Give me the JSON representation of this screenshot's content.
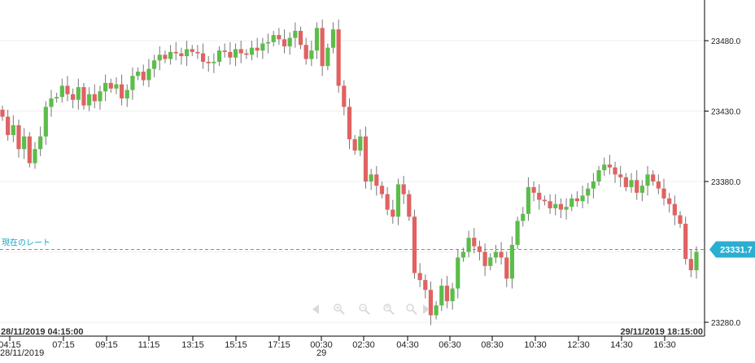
{
  "chart_data": {
    "type": "candlestick",
    "colors": {
      "up": "#5bbd4a",
      "down": "#e06262",
      "current_line": "#2aaed1",
      "grid": "#efefef",
      "axis": "#000000"
    },
    "y_axis": {
      "position": "right",
      "ticks": [
        "23480.0",
        "23430.0",
        "23380.0",
        "23280.0"
      ]
    },
    "x_axis": {
      "ticks": [
        "04:15",
        "07:15",
        "09:15",
        "11:15",
        "13:15",
        "15:15",
        "17:15",
        "00:30",
        "02:30",
        "04:30",
        "06:30",
        "08:30",
        "10:30",
        "12:30",
        "14:30",
        "16:30"
      ],
      "date_labels": [
        {
          "text": "28/11/2019"
        },
        {
          "text": "29"
        }
      ]
    },
    "range": {
      "start": "28/11/2019 04:15:00",
      "end": "29/11/2019 18:15:00"
    },
    "current_rate": {
      "label": "現在のレート",
      "value": "23331.7"
    },
    "candles": [
      [
        23431,
        23426
      ],
      [
        23426,
        23413
      ],
      [
        23413,
        23420
      ],
      [
        23420,
        23403
      ],
      [
        23403,
        23412
      ],
      [
        23412,
        23393
      ],
      [
        23393,
        23403
      ],
      [
        23403,
        23412
      ],
      [
        23412,
        23433
      ],
      [
        23433,
        23439
      ],
      [
        23439,
        23440
      ],
      [
        23440,
        23448
      ],
      [
        23448,
        23442
      ],
      [
        23442,
        23438
      ],
      [
        23438,
        23447
      ],
      [
        23447,
        23434
      ],
      [
        23434,
        23442
      ],
      [
        23442,
        23437
      ],
      [
        23437,
        23444
      ],
      [
        23444,
        23450
      ],
      [
        23450,
        23446
      ],
      [
        23446,
        23449
      ],
      [
        23449,
        23439
      ],
      [
        23439,
        23445
      ],
      [
        23445,
        23455
      ],
      [
        23455,
        23458
      ],
      [
        23458,
        23452
      ],
      [
        23452,
        23460
      ],
      [
        23460,
        23466
      ],
      [
        23466,
        23470
      ],
      [
        23470,
        23467
      ],
      [
        23467,
        23472
      ],
      [
        23472,
        23471
      ],
      [
        23471,
        23469
      ],
      [
        23469,
        23474
      ],
      [
        23474,
        23472
      ],
      [
        23472,
        23471
      ],
      [
        23471,
        23465
      ],
      [
        23465,
        23464
      ],
      [
        23464,
        23465
      ],
      [
        23465,
        23473
      ],
      [
        23473,
        23472
      ],
      [
        23472,
        23468
      ],
      [
        23468,
        23474
      ],
      [
        23474,
        23471
      ],
      [
        23471,
        23470
      ],
      [
        23470,
        23475
      ],
      [
        23475,
        23473
      ],
      [
        23473,
        23478
      ],
      [
        23478,
        23479
      ],
      [
        23479,
        23484
      ],
      [
        23484,
        23481
      ],
      [
        23481,
        23476
      ],
      [
        23476,
        23482
      ],
      [
        23482,
        23487
      ],
      [
        23487,
        23477
      ],
      [
        23477,
        23467
      ],
      [
        23467,
        23473
      ],
      [
        23473,
        23489
      ],
      [
        23489,
        23462
      ],
      [
        23462,
        23475
      ],
      [
        23475,
        23488
      ],
      [
        23488,
        23448
      ],
      [
        23448,
        23433
      ],
      [
        23433,
        23410
      ],
      [
        23410,
        23402
      ],
      [
        23402,
        23412
      ],
      [
        23412,
        23380
      ],
      [
        23380,
        23385
      ],
      [
        23385,
        23377
      ],
      [
        23377,
        23371
      ],
      [
        23371,
        23360
      ],
      [
        23360,
        23355
      ],
      [
        23355,
        23378
      ],
      [
        23378,
        23371
      ],
      [
        23371,
        23355
      ],
      [
        23355,
        23315
      ],
      [
        23315,
        23310
      ],
      [
        23310,
        23303
      ],
      [
        23303,
        23285
      ],
      [
        23285,
        23292
      ],
      [
        23292,
        23306
      ],
      [
        23306,
        23295
      ],
      [
        23295,
        23304
      ],
      [
        23304,
        23326
      ],
      [
        23326,
        23330
      ],
      [
        23330,
        23340
      ],
      [
        23340,
        23334
      ],
      [
        23334,
        23330
      ],
      [
        23330,
        23320
      ],
      [
        23320,
        23326
      ],
      [
        23326,
        23330
      ],
      [
        23330,
        23326
      ],
      [
        23326,
        23311
      ],
      [
        23311,
        23335
      ],
      [
        23335,
        23352
      ],
      [
        23352,
        23357
      ],
      [
        23357,
        23376
      ],
      [
        23376,
        23372
      ],
      [
        23372,
        23367
      ],
      [
        23367,
        23366
      ],
      [
        23366,
        23361
      ],
      [
        23361,
        23364
      ],
      [
        23364,
        23360
      ],
      [
        23360,
        23362
      ],
      [
        23362,
        23368
      ],
      [
        23368,
        23366
      ],
      [
        23366,
        23370
      ],
      [
        23370,
        23375
      ],
      [
        23375,
        23380
      ],
      [
        23380,
        23388
      ],
      [
        23388,
        23392
      ],
      [
        23392,
        23390
      ],
      [
        23390,
        23385
      ],
      [
        23385,
        23383
      ],
      [
        23383,
        23376
      ],
      [
        23376,
        23381
      ],
      [
        23381,
        23372
      ],
      [
        23372,
        23377
      ],
      [
        23377,
        23385
      ],
      [
        23385,
        23380
      ],
      [
        23380,
        23375
      ],
      [
        23375,
        23368
      ],
      [
        23368,
        23364
      ],
      [
        23364,
        23356
      ],
      [
        23356,
        23350
      ],
      [
        23350,
        23325
      ],
      [
        23325,
        23317
      ],
      [
        23317,
        23330
      ]
    ]
  },
  "toolbar": {
    "icons": [
      "pan-left-icon",
      "zoom-in-icon",
      "zoom-out-icon",
      "zoom-reset-icon",
      "scroll-right-icon"
    ]
  }
}
